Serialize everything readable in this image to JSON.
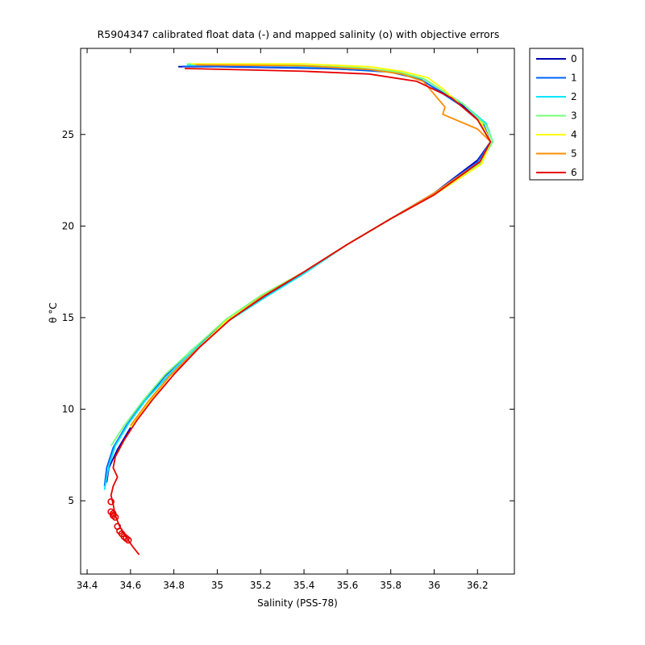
{
  "chart_data": {
    "type": "line",
    "title": "R5904347 calibrated float data (-) and mapped salinity (o) with objective errors",
    "xlabel": "Salinity (PSS-78)",
    "ylabel": "θ °C",
    "xlim": [
      34.37,
      36.37
    ],
    "ylim": [
      1.0,
      29.7
    ],
    "xticks": [
      34.4,
      34.6,
      34.8,
      35,
      35.2,
      35.4,
      35.6,
      35.8,
      36,
      36.2
    ],
    "xtick_labels": [
      "34.4",
      "34.6",
      "34.8",
      "35",
      "35.2",
      "35.4",
      "35.6",
      "35.8",
      "36",
      "36.2"
    ],
    "yticks": [
      5,
      10,
      15,
      20,
      25
    ],
    "ytick_labels": [
      "5",
      "10",
      "15",
      "20",
      "25"
    ],
    "grid": false,
    "legend_position": "outside-top-right",
    "series": [
      {
        "name": "0",
        "color": "#0000b4",
        "x": [
          34.82,
          35.0,
          35.5,
          35.78,
          35.93,
          36.12,
          36.22,
          36.26,
          36.2,
          36.0,
          35.8,
          35.6,
          35.4,
          35.2,
          35.05,
          34.9,
          34.78,
          34.68,
          34.6,
          34.54,
          34.5,
          34.49
        ],
        "y": [
          28.7,
          28.7,
          28.6,
          28.45,
          28.05,
          26.7,
          25.6,
          24.6,
          23.6,
          21.8,
          20.4,
          19.0,
          17.5,
          16.0,
          14.8,
          13.2,
          11.8,
          10.3,
          9.0,
          7.8,
          6.8,
          6.0
        ]
      },
      {
        "name": "1",
        "color": "#0064ff",
        "x": [
          34.84,
          35.1,
          35.5,
          35.8,
          35.94,
          36.12,
          36.23,
          36.26,
          36.2,
          36.0,
          35.8,
          35.6,
          35.4,
          35.2,
          35.04,
          34.88,
          34.76,
          34.66,
          34.58,
          34.52,
          34.49,
          34.48
        ],
        "y": [
          28.72,
          28.7,
          28.62,
          28.4,
          28.0,
          26.6,
          25.5,
          24.6,
          23.5,
          21.8,
          20.4,
          19.0,
          17.5,
          16.1,
          14.8,
          13.2,
          11.8,
          10.4,
          9.1,
          7.9,
          6.8,
          5.8
        ]
      },
      {
        "name": "2",
        "color": "#00e6ff",
        "x": [
          34.86,
          35.2,
          35.6,
          35.82,
          35.95,
          36.13,
          36.24,
          36.27,
          36.21,
          36.0,
          35.8,
          35.6,
          35.4,
          35.22,
          35.05,
          34.9,
          34.78,
          34.67,
          34.59,
          34.53,
          34.5,
          34.48
        ],
        "y": [
          28.8,
          28.78,
          28.65,
          28.45,
          28.05,
          26.7,
          25.6,
          24.6,
          23.4,
          21.7,
          20.4,
          19.0,
          17.4,
          16.1,
          14.8,
          13.3,
          11.9,
          10.5,
          9.2,
          8.0,
          6.9,
          5.6
        ]
      },
      {
        "name": "3",
        "color": "#78ff78",
        "x": [
          34.86,
          35.3,
          35.65,
          35.84,
          35.96,
          36.14,
          36.24,
          36.27,
          36.21,
          36.0,
          35.8,
          35.6,
          35.4,
          35.2,
          35.04,
          34.89,
          34.76,
          34.66,
          34.57,
          34.51
        ],
        "y": [
          28.85,
          28.8,
          28.65,
          28.4,
          28.0,
          26.6,
          25.5,
          24.6,
          23.4,
          21.7,
          20.4,
          19.0,
          17.5,
          16.2,
          14.9,
          13.3,
          11.9,
          10.5,
          9.1,
          8.0
        ]
      },
      {
        "name": "4",
        "color": "#ffff00",
        "x": [
          34.88,
          35.4,
          35.7,
          35.85,
          35.97,
          36.04,
          36.13,
          36.22,
          36.26,
          36.22,
          36.0,
          35.8,
          35.6,
          35.4,
          35.2,
          35.04,
          34.9,
          34.78,
          34.68,
          34.6
        ],
        "y": [
          28.85,
          28.85,
          28.7,
          28.45,
          28.1,
          27.5,
          26.5,
          25.6,
          24.6,
          23.4,
          21.7,
          20.4,
          19.0,
          17.5,
          16.1,
          14.8,
          13.2,
          11.8,
          10.3,
          9.0
        ]
      },
      {
        "name": "5",
        "color": "#ff8c00",
        "x": [
          34.9,
          35.4,
          35.7,
          35.85,
          35.95,
          36.05,
          36.04,
          36.2,
          36.26,
          36.21,
          36.0,
          35.8,
          35.6,
          35.4,
          35.2,
          35.05,
          34.9,
          34.78,
          34.68,
          34.6
        ],
        "y": [
          28.8,
          28.75,
          28.55,
          28.3,
          27.9,
          26.5,
          26.1,
          25.3,
          24.6,
          23.5,
          21.8,
          20.4,
          19.0,
          17.5,
          16.1,
          14.8,
          13.2,
          11.8,
          10.4,
          9.1
        ]
      },
      {
        "name": "6",
        "color": "#e60000",
        "x": [
          34.85,
          35.05,
          35.4,
          35.7,
          35.92,
          36.08,
          36.2,
          36.26,
          36.21,
          36.0,
          35.8,
          35.6,
          35.4,
          35.22,
          35.06,
          34.92,
          34.8,
          34.7,
          34.63,
          34.57,
          34.53,
          34.52,
          34.54,
          34.52,
          34.51,
          34.52,
          34.53,
          34.55,
          34.58,
          34.61,
          34.64
        ],
        "y": [
          28.6,
          28.55,
          28.45,
          28.3,
          27.9,
          27.0,
          25.8,
          24.6,
          23.5,
          21.7,
          20.4,
          19.0,
          17.5,
          16.2,
          14.9,
          13.4,
          11.9,
          10.5,
          9.4,
          8.3,
          7.4,
          6.8,
          6.3,
          5.8,
          5.3,
          4.8,
          4.2,
          3.6,
          3.0,
          2.5,
          2.05
        ]
      }
    ],
    "mapped_points": {
      "series": "6",
      "marker": "o",
      "color": "#e60000",
      "x": [
        34.51,
        34.51,
        34.52,
        34.52,
        34.53,
        34.54,
        34.55,
        34.56,
        34.57,
        34.58,
        34.59
      ],
      "y": [
        4.95,
        4.4,
        4.3,
        4.2,
        4.1,
        3.6,
        3.35,
        3.2,
        3.05,
        2.95,
        2.85
      ]
    }
  }
}
